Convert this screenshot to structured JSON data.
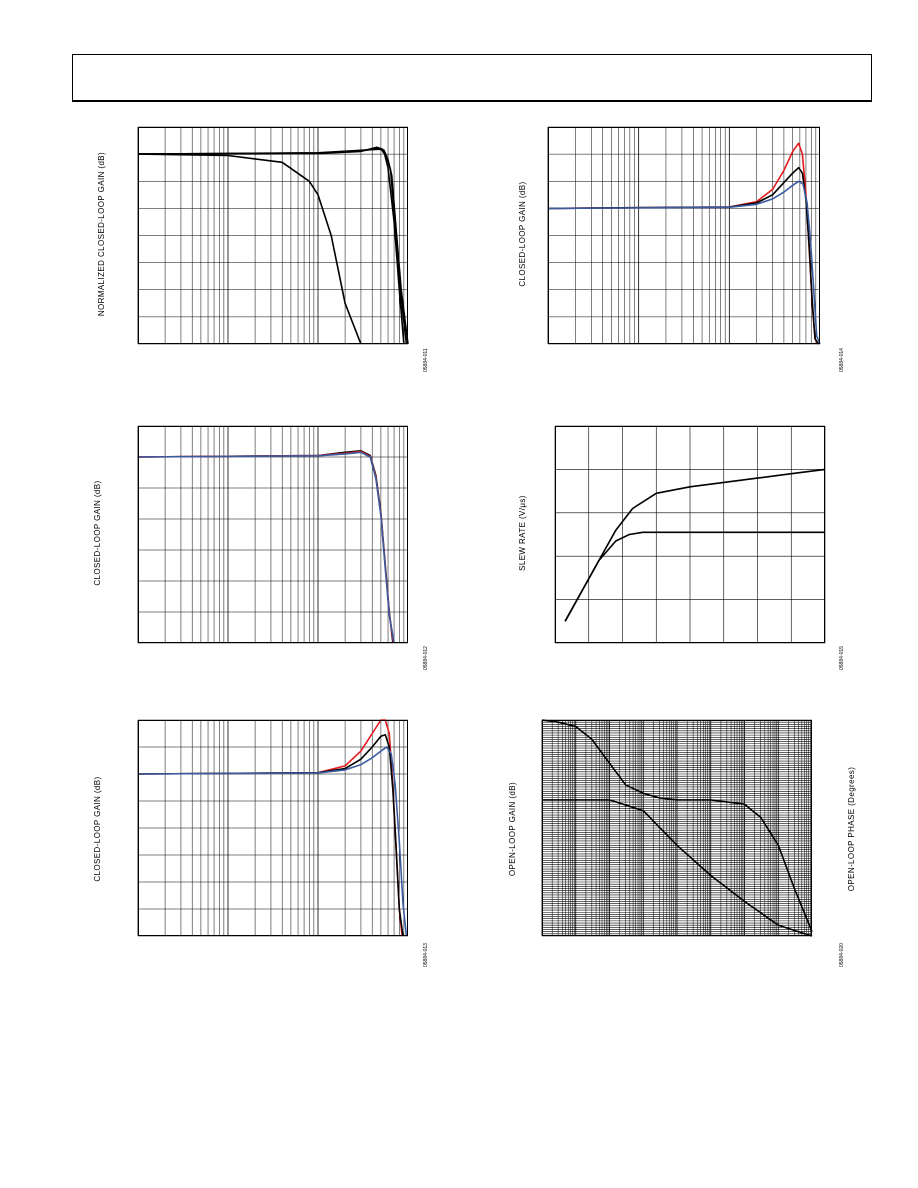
{
  "page": {
    "header_text": ""
  },
  "chart_data": [
    {
      "type": "line",
      "title": "",
      "ylabel": "NORMALIZED CLOSED-LOOP GAIN (dB)",
      "fig_id": "05884-011",
      "x_scale": "log",
      "xlim": [
        1,
        1000
      ],
      "ylim": [
        -7,
        1
      ],
      "grid": true,
      "series": [
        {
          "color": "#000000",
          "x": [
            1,
            10,
            40,
            80,
            100,
            140,
            200,
            300
          ],
          "y": [
            0,
            -0.05,
            -0.3,
            -1.0,
            -1.5,
            -3.0,
            -5.5,
            -7
          ]
        },
        {
          "color": "#000000",
          "x": [
            1,
            100,
            300,
            450,
            500,
            550,
            600,
            700,
            800,
            900
          ],
          "y": [
            0,
            0.02,
            0.1,
            0.25,
            0.2,
            0,
            -0.5,
            -2.5,
            -5.0,
            -7
          ]
        },
        {
          "color": "#000000",
          "x": [
            1,
            100,
            300,
            470,
            520,
            580,
            640,
            720,
            820,
            960
          ],
          "y": [
            0,
            0.04,
            0.12,
            0.22,
            0.18,
            -0.1,
            -0.6,
            -2.6,
            -5.0,
            -7
          ]
        },
        {
          "color": "#000000",
          "x": [
            1,
            100,
            300,
            480,
            540,
            600,
            660,
            740,
            840,
            1000
          ],
          "y": [
            0,
            0.05,
            0.14,
            0.18,
            0.15,
            -0.2,
            -0.8,
            -2.8,
            -5.0,
            -7
          ]
        }
      ]
    },
    {
      "type": "line",
      "title": "",
      "ylabel": "CLOSED-LOOP GAIN (dB)",
      "fig_id": "05884-014",
      "x_scale": "log",
      "xlim": [
        1,
        1000
      ],
      "ylim": [
        -5,
        3
      ],
      "grid": true,
      "series": [
        {
          "color": "#e41a1c",
          "x": [
            1,
            100,
            200,
            300,
            400,
            500,
            580,
            640,
            700,
            760,
            820,
            880,
            940
          ],
          "y": [
            0,
            0.05,
            0.25,
            0.7,
            1.4,
            2.1,
            2.4,
            2.0,
            0.5,
            -1.5,
            -3.5,
            -4.8,
            -5
          ]
        },
        {
          "color": "#000000",
          "x": [
            1,
            100,
            200,
            300,
            400,
            500,
            580,
            640,
            700,
            760,
            820,
            880,
            960
          ],
          "y": [
            0,
            0.05,
            0.2,
            0.5,
            0.95,
            1.3,
            1.5,
            1.3,
            0.3,
            -1.4,
            -3.4,
            -4.8,
            -5
          ]
        },
        {
          "color": "#3a5ba0",
          "x": [
            1,
            100,
            200,
            300,
            400,
            500,
            580,
            650,
            720,
            790,
            860,
            920,
            1000
          ],
          "y": [
            0,
            0.04,
            0.15,
            0.35,
            0.6,
            0.85,
            1.0,
            0.9,
            0.2,
            -1.3,
            -3.2,
            -4.7,
            -5
          ]
        }
      ]
    },
    {
      "type": "line",
      "title": "",
      "ylabel": "CLOSED-LOOP GAIN (dB)",
      "fig_id": "05884-012",
      "x_scale": "log",
      "xlim": [
        1,
        1000
      ],
      "ylim": [
        -6,
        1
      ],
      "grid": true,
      "series": [
        {
          "color": "#000000",
          "x": [
            1,
            100,
            200,
            300,
            380,
            440,
            500,
            560,
            620,
            680
          ],
          "y": [
            0,
            0.05,
            0.15,
            0.2,
            0.05,
            -0.6,
            -1.8,
            -3.5,
            -5.0,
            -6
          ]
        },
        {
          "color": "#e41a1c",
          "x": [
            1,
            100,
            200,
            300,
            380,
            440,
            500,
            560,
            620,
            690
          ],
          "y": [
            0,
            0.05,
            0.12,
            0.18,
            0.02,
            -0.65,
            -1.85,
            -3.55,
            -5.05,
            -6
          ]
        },
        {
          "color": "#3a5ba0",
          "x": [
            1,
            100,
            200,
            300,
            380,
            440,
            500,
            560,
            620,
            700
          ],
          "y": [
            0,
            0.04,
            0.1,
            0.15,
            0.0,
            -0.7,
            -1.9,
            -3.6,
            -5.1,
            -6
          ]
        }
      ]
    },
    {
      "type": "line",
      "title": "",
      "ylabel": "SLEW RATE (V/μs)",
      "fig_id": "05884-015",
      "xlim": [
        0,
        8
      ],
      "ylim": [
        0,
        5
      ],
      "grid": true,
      "series": [
        {
          "color": "#000000",
          "x": [
            0.3,
            0.8,
            1.3,
            1.8,
            2.3,
            3.0,
            4.0,
            5.0,
            6.0,
            7.0,
            8.0
          ],
          "y": [
            0.5,
            1.2,
            1.9,
            2.6,
            3.1,
            3.45,
            3.6,
            3.7,
            3.8,
            3.9,
            4.0
          ]
        },
        {
          "color": "#000000",
          "x": [
            0.3,
            0.8,
            1.3,
            1.8,
            2.2,
            2.6,
            3.0,
            4.0,
            6.0,
            8.0
          ],
          "y": [
            0.5,
            1.2,
            1.9,
            2.35,
            2.5,
            2.55,
            2.55,
            2.55,
            2.55,
            2.55
          ]
        }
      ]
    },
    {
      "type": "line",
      "title": "",
      "ylabel": "CLOSED-LOOP GAIN (dB)",
      "fig_id": "05884-013",
      "x_scale": "log",
      "xlim": [
        1,
        1000
      ],
      "ylim": [
        -6,
        2
      ],
      "grid": true,
      "series": [
        {
          "color": "#e41a1c",
          "x": [
            1,
            100,
            200,
            300,
            400,
            500,
            560,
            620,
            680,
            740,
            800,
            860
          ],
          "y": [
            0,
            0.05,
            0.3,
            0.85,
            1.5,
            2.1,
            2.2,
            1.5,
            -0.5,
            -2.8,
            -5.0,
            -6
          ]
        },
        {
          "color": "#000000",
          "x": [
            1,
            100,
            200,
            300,
            400,
            500,
            560,
            620,
            680,
            740,
            800,
            880
          ],
          "y": [
            0,
            0.05,
            0.2,
            0.55,
            1.0,
            1.4,
            1.45,
            1.0,
            -0.6,
            -2.8,
            -5.0,
            -6
          ]
        },
        {
          "color": "#3a5ba0",
          "x": [
            1,
            100,
            200,
            300,
            400,
            500,
            580,
            650,
            720,
            800,
            880,
            960
          ],
          "y": [
            0,
            0.04,
            0.15,
            0.35,
            0.6,
            0.85,
            1.0,
            0.75,
            -0.4,
            -2.5,
            -4.8,
            -6
          ]
        }
      ]
    },
    {
      "type": "line",
      "title": "",
      "ylabel": "OPEN-LOOP GAIN (dB)",
      "ylabel_right": "OPEN-LOOP PHASE (Degrees)",
      "fig_id": "05884-020",
      "x_scale": "log",
      "xlim": [
        1,
        100000000
      ],
      "ylim": [
        0,
        100
      ],
      "grid": true,
      "series": [
        {
          "color": "#000000",
          "x": [
            1,
            10,
            100,
            1000,
            10000,
            100000,
            1000000,
            10000000,
            100000000
          ],
          "y": [
            63,
            63,
            63,
            58,
            42,
            28,
            16,
            5,
            0
          ]
        },
        {
          "color": "#000000",
          "x": [
            1,
            3,
            10,
            30,
            100,
            300,
            1000,
            3000,
            10000,
            100000,
            1000000,
            3000000,
            10000000,
            30000000,
            100000000
          ],
          "y": [
            100,
            99,
            97,
            91,
            80,
            70,
            66,
            64,
            63,
            63,
            61,
            55,
            42,
            22,
            2
          ]
        }
      ]
    }
  ]
}
